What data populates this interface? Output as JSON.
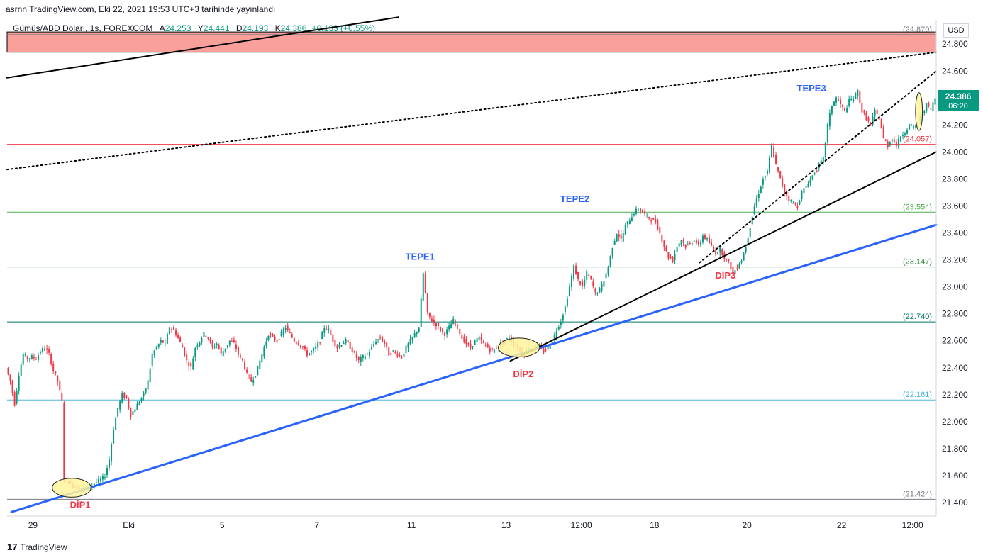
{
  "header": {
    "text": "asrnn TradingView.com, Eki 22, 2021 19:53 UTC+3 tarihinde yayınlandı"
  },
  "legend": {
    "symbol": "Gümüş/ABD Doları, 1s, FOREXCOM",
    "open_label": "A",
    "open": "24.253",
    "high_label": "Y",
    "high": "24.441",
    "low_label": "D",
    "low": "24.193",
    "close_label": "K",
    "close": "24.386",
    "change": "+0.133 (+0.55%)"
  },
  "currency": "USD",
  "footer": {
    "logo": "17",
    "brand": "TradingView"
  },
  "colors": {
    "up": "#089981",
    "down": "#f23645",
    "trend_blue": "#2962ff",
    "resistance_zone": "#f9a09a",
    "highlight": "#fff59d"
  },
  "chart_data": {
    "type": "candlestick",
    "ylim": [
      21.3,
      24.98
    ],
    "y_ticks": [
      "21.400",
      "21.600",
      "21.800",
      "22.000",
      "22.200",
      "22.400",
      "22.600",
      "22.800",
      "23.000",
      "23.200",
      "23.400",
      "23.600",
      "23.800",
      "24.000",
      "24.200",
      "24.400",
      "24.600",
      "24.800"
    ],
    "x_ticks": [
      {
        "label": "29",
        "x": 0.0
      },
      {
        "label": "Eki",
        "x": 22.3
      },
      {
        "label": "5",
        "x": 44.0
      },
      {
        "label": "7",
        "x": 66.0
      },
      {
        "label": "11",
        "x": 88.0
      },
      {
        "label": "13",
        "x": 110.0
      },
      {
        "label": "12:00",
        "x": 127.5
      },
      {
        "label": "18",
        "x": 144.5
      },
      {
        "label": "20",
        "x": 166.0
      },
      {
        "label": "22",
        "x": 188.0
      },
      {
        "label": "12:00",
        "x": 204.5
      }
    ],
    "x_range": [
      -6.0,
      210.0
    ],
    "price_path": [
      [
        -6,
        22.4
      ],
      [
        -5,
        22.3
      ],
      [
        -4,
        22.13
      ],
      [
        -3,
        22.35
      ],
      [
        -2,
        22.5
      ],
      [
        -1,
        22.47
      ],
      [
        0,
        22.48
      ],
      [
        1,
        22.47
      ],
      [
        2,
        22.52
      ],
      [
        3,
        22.55
      ],
      [
        4,
        22.5
      ],
      [
        5,
        22.38
      ],
      [
        6,
        22.3
      ],
      [
        7,
        22.15
      ],
      [
        7.7,
        21.58
      ],
      [
        8.5,
        21.55
      ],
      [
        10,
        21.52
      ],
      [
        12,
        21.5
      ],
      [
        14,
        21.53
      ],
      [
        16,
        21.57
      ],
      [
        17,
        21.6
      ],
      [
        18,
        21.72
      ],
      [
        19,
        21.95
      ],
      [
        20,
        22.1
      ],
      [
        21,
        22.2
      ],
      [
        22,
        22.17
      ],
      [
        23,
        22.05
      ],
      [
        24,
        22.1
      ],
      [
        25,
        22.15
      ],
      [
        26,
        22.2
      ],
      [
        27,
        22.3
      ],
      [
        28,
        22.5
      ],
      [
        29,
        22.55
      ],
      [
        30,
        22.6
      ],
      [
        31,
        22.58
      ],
      [
        32,
        22.7
      ],
      [
        33,
        22.68
      ],
      [
        34,
        22.62
      ],
      [
        35,
        22.55
      ],
      [
        36,
        22.45
      ],
      [
        37,
        22.4
      ],
      [
        38,
        22.55
      ],
      [
        39,
        22.6
      ],
      [
        40,
        22.65
      ],
      [
        41,
        22.62
      ],
      [
        42,
        22.55
      ],
      [
        43,
        22.58
      ],
      [
        44,
        22.5
      ],
      [
        45,
        22.55
      ],
      [
        46,
        22.6
      ],
      [
        47,
        22.58
      ],
      [
        48,
        22.5
      ],
      [
        49,
        22.45
      ],
      [
        50,
        22.35
      ],
      [
        51,
        22.3
      ],
      [
        52,
        22.35
      ],
      [
        53,
        22.45
      ],
      [
        54,
        22.55
      ],
      [
        55,
        22.65
      ],
      [
        56,
        22.62
      ],
      [
        57,
        22.6
      ],
      [
        58,
        22.65
      ],
      [
        59,
        22.7
      ],
      [
        60,
        22.65
      ],
      [
        61,
        22.6
      ],
      [
        62,
        22.58
      ],
      [
        63,
        22.55
      ],
      [
        64,
        22.5
      ],
      [
        65,
        22.52
      ],
      [
        66,
        22.55
      ],
      [
        67,
        22.6
      ],
      [
        68,
        22.7
      ],
      [
        69,
        22.68
      ],
      [
        70,
        22.6
      ],
      [
        71,
        22.55
      ],
      [
        72,
        22.58
      ],
      [
        73,
        22.6
      ],
      [
        74,
        22.55
      ],
      [
        75,
        22.5
      ],
      [
        76,
        22.45
      ],
      [
        77,
        22.48
      ],
      [
        78,
        22.5
      ],
      [
        79,
        22.55
      ],
      [
        80,
        22.6
      ],
      [
        81,
        22.62
      ],
      [
        82,
        22.58
      ],
      [
        83,
        22.5
      ],
      [
        84,
        22.52
      ],
      [
        85,
        22.5
      ],
      [
        86,
        22.48
      ],
      [
        87,
        22.55
      ],
      [
        88,
        22.6
      ],
      [
        89,
        22.65
      ],
      [
        90,
        22.7
      ],
      [
        91,
        23.1
      ],
      [
        92,
        22.8
      ],
      [
        93,
        22.75
      ],
      [
        94,
        22.72
      ],
      [
        95,
        22.68
      ],
      [
        96,
        22.65
      ],
      [
        97,
        22.7
      ],
      [
        98,
        22.75
      ],
      [
        99,
        22.7
      ],
      [
        100,
        22.62
      ],
      [
        101,
        22.58
      ],
      [
        102,
        22.55
      ],
      [
        103,
        22.6
      ],
      [
        104,
        22.62
      ],
      [
        105,
        22.58
      ],
      [
        106,
        22.55
      ],
      [
        107,
        22.52
      ],
      [
        108,
        22.55
      ],
      [
        109,
        22.58
      ],
      [
        110,
        22.6
      ],
      [
        111,
        22.62
      ],
      [
        112,
        22.58
      ],
      [
        113,
        22.55
      ],
      [
        114,
        22.5
      ],
      [
        115,
        22.52
      ],
      [
        116,
        22.55
      ],
      [
        117,
        22.58
      ],
      [
        118,
        22.55
      ],
      [
        119,
        22.52
      ],
      [
        120,
        22.55
      ],
      [
        121,
        22.6
      ],
      [
        122,
        22.68
      ],
      [
        123,
        22.75
      ],
      [
        124,
        22.85
      ],
      [
        125,
        23.0
      ],
      [
        126,
        23.15
      ],
      [
        127,
        23.05
      ],
      [
        128,
        23.0
      ],
      [
        129,
        23.1
      ],
      [
        130,
        23.05
      ],
      [
        131,
        22.95
      ],
      [
        132,
        22.98
      ],
      [
        133,
        23.05
      ],
      [
        134,
        23.15
      ],
      [
        135,
        23.3
      ],
      [
        136,
        23.4
      ],
      [
        137,
        23.35
      ],
      [
        138,
        23.45
      ],
      [
        139,
        23.5
      ],
      [
        140,
        23.55
      ],
      [
        141,
        23.58
      ],
      [
        142,
        23.55
      ],
      [
        143,
        23.52
      ],
      [
        144,
        23.5
      ],
      [
        145,
        23.48
      ],
      [
        146,
        23.4
      ],
      [
        147,
        23.3
      ],
      [
        148,
        23.22
      ],
      [
        149,
        23.2
      ],
      [
        150,
        23.3
      ],
      [
        151,
        23.35
      ],
      [
        152,
        23.3
      ],
      [
        153,
        23.32
      ],
      [
        154,
        23.35
      ],
      [
        155,
        23.3
      ],
      [
        156,
        23.38
      ],
      [
        157,
        23.35
      ],
      [
        158,
        23.3
      ],
      [
        159,
        23.25
      ],
      [
        160,
        23.28
      ],
      [
        161,
        23.22
      ],
      [
        162,
        23.18
      ],
      [
        163,
        23.1
      ],
      [
        164,
        23.15
      ],
      [
        165,
        23.2
      ],
      [
        166,
        23.3
      ],
      [
        167,
        23.45
      ],
      [
        168,
        23.6
      ],
      [
        169,
        23.7
      ],
      [
        170,
        23.8
      ],
      [
        171,
        23.85
      ],
      [
        172,
        24.05
      ],
      [
        173,
        23.9
      ],
      [
        174,
        23.8
      ],
      [
        175,
        23.7
      ],
      [
        176,
        23.65
      ],
      [
        177,
        23.62
      ],
      [
        178,
        23.6
      ],
      [
        179,
        23.7
      ],
      [
        180,
        23.75
      ],
      [
        181,
        23.8
      ],
      [
        182,
        23.85
      ],
      [
        183,
        23.9
      ],
      [
        184,
        23.95
      ],
      [
        185,
        24.2
      ],
      [
        186,
        24.35
      ],
      [
        187,
        24.4
      ],
      [
        188,
        24.35
      ],
      [
        189,
        24.3
      ],
      [
        190,
        24.38
      ],
      [
        191,
        24.4
      ],
      [
        192,
        24.45
      ],
      [
        193,
        24.3
      ],
      [
        194,
        24.25
      ],
      [
        195,
        24.2
      ],
      [
        196,
        24.3
      ],
      [
        197,
        24.25
      ],
      [
        198,
        24.1
      ],
      [
        199,
        24.05
      ],
      [
        200,
        24.1
      ],
      [
        201,
        24.05
      ],
      [
        202,
        24.12
      ],
      [
        203,
        24.15
      ],
      [
        204,
        24.2
      ],
      [
        205,
        24.18
      ],
      [
        206,
        24.22
      ],
      [
        207,
        24.28
      ],
      [
        208,
        24.35
      ],
      [
        209,
        24.32
      ],
      [
        210,
        24.4
      ]
    ],
    "horizontal_levels": [
      {
        "value": 24.87,
        "label": "(24.870)",
        "color": "#787b86"
      },
      {
        "value": 24.057,
        "label": "(24.057)",
        "color": "#f23645"
      },
      {
        "value": 23.554,
        "label": "(23.554)",
        "color": "#4caf50"
      },
      {
        "value": 23.147,
        "label": "(23.147)",
        "color": "#388e3c"
      },
      {
        "value": 22.74,
        "label": "(22.740)",
        "color": "#00796b"
      },
      {
        "value": 22.161,
        "label": "(22.161)",
        "color": "#4fb6d8"
      },
      {
        "value": 21.424,
        "label": "(21.424)",
        "color": "#787b86"
      }
    ],
    "resistance_zone": {
      "from": 24.74,
      "to": 24.89
    },
    "trendlines": [
      {
        "name": "blue-uptrend",
        "from": [
          -5,
          21.33
        ],
        "to": [
          210,
          23.46
        ],
        "color": "#2962ff",
        "width": 3,
        "dash": false
      },
      {
        "name": "black-support",
        "from": [
          111,
          22.45
        ],
        "to": [
          210,
          24.0
        ],
        "color": "#000000",
        "width": 2,
        "dash": false
      },
      {
        "name": "black-upper",
        "from": [
          -6,
          24.55
        ],
        "to": [
          85,
          25.0
        ],
        "color": "#000000",
        "width": 2,
        "dash": false
      },
      {
        "name": "dotted-upper",
        "from": [
          -6,
          23.87
        ],
        "to": [
          210,
          24.74
        ],
        "color": "#000000",
        "width": 2,
        "dash": true
      },
      {
        "name": "dotted-support",
        "from": [
          155,
          23.18
        ],
        "to": [
          210,
          24.6
        ],
        "color": "#000000",
        "width": 2,
        "dash": true
      }
    ],
    "annotations": [
      {
        "text": "TEPE1",
        "x": 90,
        "y": 23.2,
        "color": "#2962ff"
      },
      {
        "text": "TEPE2",
        "x": 126,
        "y": 23.63,
        "color": "#2962ff"
      },
      {
        "text": "TEPE3",
        "x": 181,
        "y": 24.45,
        "color": "#2962ff"
      },
      {
        "text": "DİP1",
        "x": 11,
        "y": 21.36,
        "color": "#f23645"
      },
      {
        "text": "DİP2",
        "x": 114,
        "y": 22.33,
        "color": "#f23645"
      },
      {
        "text": "DİP3",
        "x": 161,
        "y": 23.06,
        "color": "#f23645"
      }
    ],
    "ellipses": [
      {
        "x": 9,
        "y": 21.51,
        "rx": 4.5,
        "ry": 0.07
      },
      {
        "x": 113,
        "y": 22.55,
        "rx": 4.8,
        "ry": 0.07
      },
      {
        "x": 206,
        "y": 24.3,
        "rx": 0.8,
        "ry": 0.14
      }
    ],
    "last_price": {
      "value": "24.386",
      "time": "06:20",
      "color": "#089981"
    }
  }
}
